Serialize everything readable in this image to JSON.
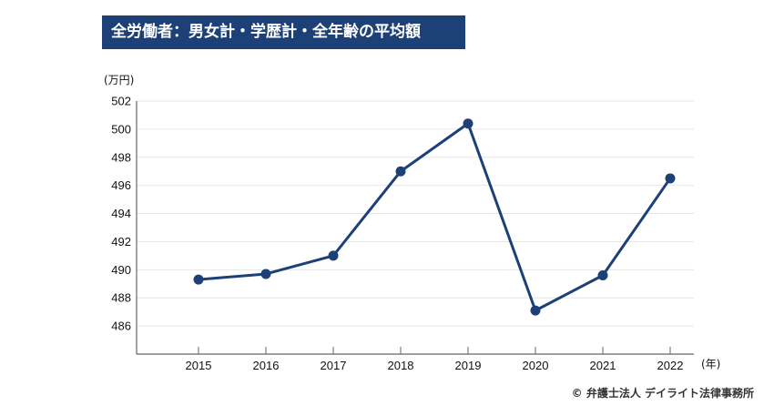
{
  "header": {
    "title": "全労働者：男女計・学歴計・全年齢の平均額"
  },
  "credit": "© 弁護士法人 デイライト法律事務所",
  "colors": {
    "accent": "#1d4077",
    "line": "#1d4077",
    "grid": "#e6e6e6",
    "axis": "#666666"
  },
  "chart_data": {
    "type": "line",
    "title": "全労働者：男女計・学歴計・全年齢の平均額",
    "xlabel": "(年)",
    "ylabel": "(万円)",
    "categories": [
      "2015",
      "2016",
      "2017",
      "2018",
      "2019",
      "2020",
      "2021",
      "2022"
    ],
    "series": [
      {
        "values": [
          489.3,
          489.7,
          491.0,
          497.0,
          500.4,
          487.1,
          489.6,
          496.5
        ]
      }
    ],
    "ylim": [
      484,
      502
    ],
    "yticks": [
      486,
      488,
      490,
      492,
      494,
      496,
      498,
      500,
      502
    ],
    "grid": true,
    "legend": "none"
  }
}
